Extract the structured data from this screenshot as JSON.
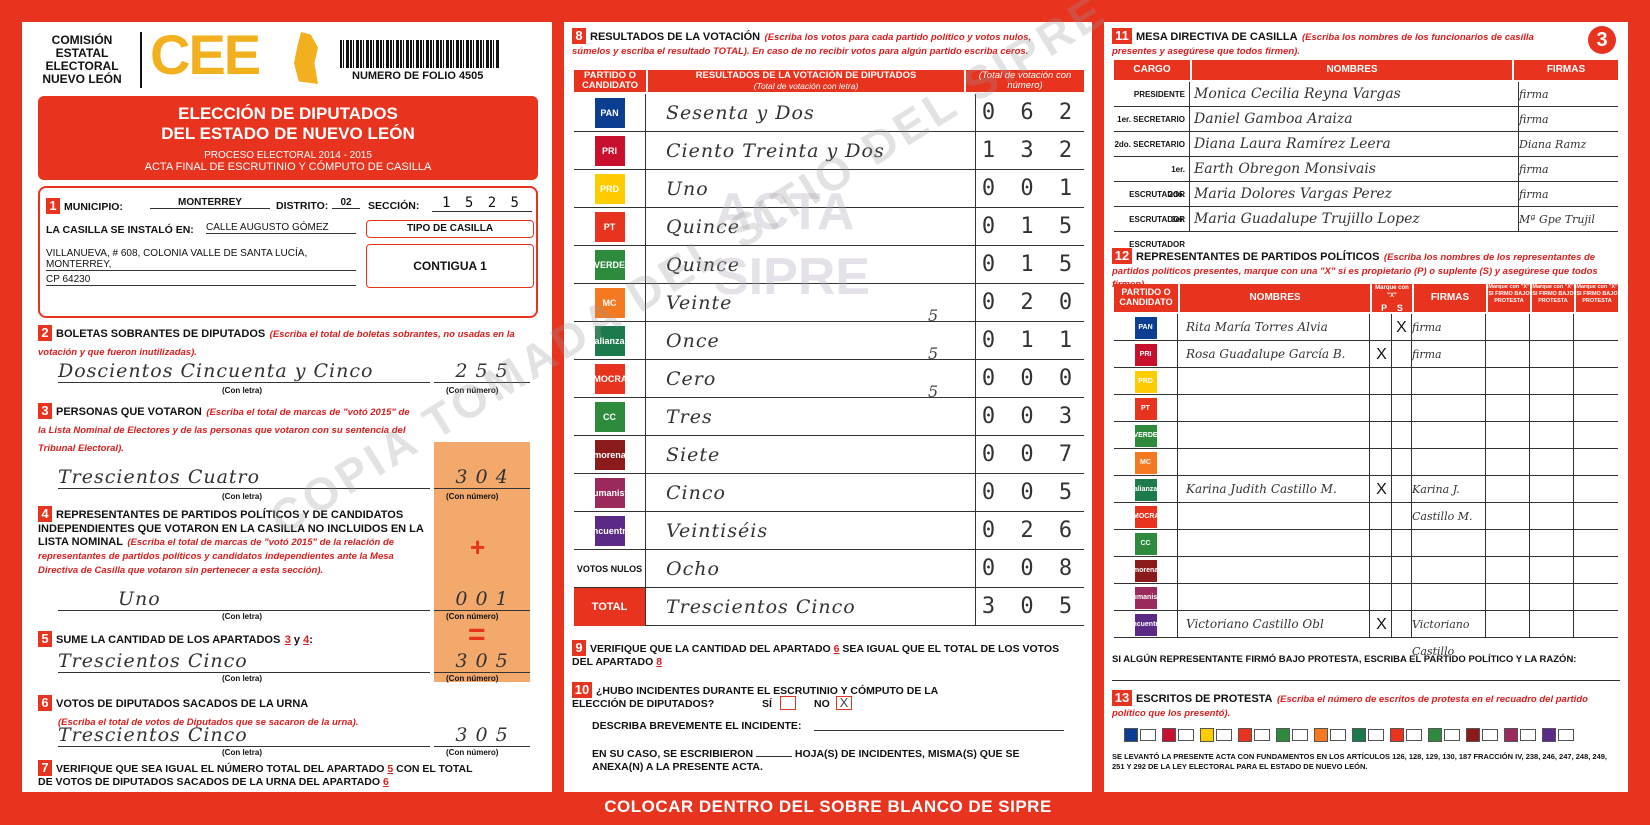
{
  "header": {
    "org_name_lines": [
      "COMISIÓN",
      "ESTATAL",
      "ELECTORAL",
      "NUEVO LEÓN"
    ],
    "logo_text": "CEE",
    "folio": "NUMERO DE FOLIO 4505",
    "page_number": "3"
  },
  "banner": {
    "title_line1": "ELECCIÓN DE DIPUTADOS",
    "title_line2": "DEL ESTADO DE NUEVO LEÓN",
    "process": "PROCESO ELECTORAL 2014 - 2015",
    "act": "ACTA FINAL DE ESCRUTINIO Y CÓMPUTO DE CASILLA"
  },
  "section1": {
    "num": "1",
    "municipio_label": "MUNICIPIO:",
    "municipio_value": "MONTERREY",
    "distrito_label": "DISTRITO:",
    "distrito_value": "02",
    "seccion_label": "SECCIÓN:",
    "seccion_value": "1 5 2 5",
    "installed_label": "LA CASILLA SE INSTALÓ EN:",
    "address_line1": "CALLE AUGUSTO GÓMEZ",
    "address_line2": "VILLANUEVA, # 608, COLONIA VALLE DE SANTA LUCÍA, MONTERREY,",
    "address_line3": "CP 64230",
    "tipo_label": "TIPO DE CASILLA",
    "tipo_value": "CONTIGUA 1"
  },
  "section2": {
    "num": "2",
    "title": "BOLETAS SOBRANTES DE DIPUTADOS",
    "note": "(Escriba el total de boletas sobrantes, no usadas en la votación y que fueron inutilizadas).",
    "letter": "Doscientos Cincuenta y Cinco",
    "number": "2 5 5",
    "letter_caption": "(Con letra)",
    "number_caption": "(Con número)"
  },
  "section3": {
    "num": "3",
    "title": "PERSONAS QUE VOTARON",
    "note": "(Escriba el total de marcas de \"votó 2015\" de la Lista Nominal de Electores y de las personas que votaron con su sentencia del Tribunal Electoral).",
    "letter": "Trescientos Cuatro",
    "number": "3 0 4",
    "letter_caption": "(Con letra)",
    "number_caption": "(Con número)"
  },
  "section4": {
    "num": "4",
    "title": "REPRESENTANTES DE PARTIDOS POLÍTICOS Y DE CANDIDATOS INDEPENDIENTES QUE VOTARON EN LA CASILLA NO INCLUIDOS EN LA LISTA NOMINAL",
    "note": "(Escriba el total de marcas de \"votó 2015\" de la relación de representantes de partidos políticos y candidatos independientes ante la Mesa Directiva de Casilla que votaron sin pertenecer a esta sección).",
    "letter": "Uno",
    "number": "0 0 1",
    "plus": "+",
    "letter_caption": "(Con letra)",
    "number_caption": "(Con número)"
  },
  "section5": {
    "num": "5",
    "title": "SUME LA CANTIDAD DE LOS APARTADOS",
    "ref_a": "3",
    "ref_b": "4",
    "letter": "Trescientos Cinco",
    "number": "3 0 5",
    "equals": "=",
    "letter_caption": "(Con letra)",
    "number_caption": "(Con número)"
  },
  "section6": {
    "num": "6",
    "title": "VOTOS DE DIPUTADOS SACADOS DE LA URNA",
    "note": "(Escriba el total de votos de Diputados que se sacaron de la urna).",
    "letter": "Trescientos Cinco",
    "number": "3 0 5",
    "letter_caption": "(Con letra)",
    "number_caption": "(Con número)"
  },
  "section7": {
    "num": "7",
    "text_a": "VERIFIQUE QUE SEA IGUAL EL NÚMERO TOTAL DEL APARTADO",
    "ref_a": "5",
    "text_b": "CON EL TOTAL DE VOTOS DE DIPUTADOS SACADOS DE LA URNA DEL APARTADO",
    "ref_b": "6"
  },
  "section8": {
    "num": "8",
    "title": "RESULTADOS DE LA VOTACIÓN",
    "note": "(Escriba los votos para cada partido político y votos nulos, súmelos y escriba el resultado TOTAL). En caso de no recibir votos para algún partido escriba ceros.",
    "col_party": "PARTIDO O CANDIDATO",
    "col_results": "RESULTADOS DE LA VOTACIÓN DE DIPUTADOS",
    "col_results_sub": "(Total de votación con letra)",
    "col_number": "(Total de votación con número)",
    "rows": [
      {
        "party": "PAN",
        "letter": "Sesenta y Dos",
        "number": "0 6 2",
        "color": "#0b3d91"
      },
      {
        "party": "PRI",
        "letter": "Ciento Treinta y Dos",
        "number": "1 3 2",
        "color": "#c8102e"
      },
      {
        "party": "PRD",
        "letter": "Uno",
        "number": "0 0 1",
        "color": "#ffcc00"
      },
      {
        "party": "PT",
        "letter": "Quince",
        "number": "0 1 5",
        "color": "#e8331f"
      },
      {
        "party": "VERDE",
        "letter": "Quince",
        "number": "0 1 5",
        "color": "#2e8b3d"
      },
      {
        "party": "MC",
        "letter": "Veinte",
        "number": "0 2 0",
        "color": "#f47920"
      },
      {
        "party": "alianza",
        "letter": "Once",
        "number": "0 1 1",
        "color": "#1d7a4c"
      },
      {
        "party": "DEMOCRATA",
        "letter": "Cero",
        "number": "0 0 0",
        "color": "#e8331f"
      },
      {
        "party": "CC",
        "letter": "Tres",
        "number": "0 0 3",
        "color": "#2e8b3d"
      },
      {
        "party": "morena",
        "letter": "Siete",
        "number": "0 0 7",
        "color": "#8b1a1a"
      },
      {
        "party": "Humanista",
        "letter": "Cinco",
        "number": "0 0 5",
        "color": "#9b2a5c"
      },
      {
        "party": "encuentro",
        "letter": "Veintiséis",
        "number": "0 2 6",
        "color": "#5b2a86"
      }
    ],
    "nulos_label": "VOTOS NULOS",
    "nulos_letter": "Ocho",
    "nulos_number": "0 0 8",
    "total_label": "TOTAL",
    "total_letter": "Trescientos Cinco",
    "total_number": "3 0 5",
    "margin_marks": [
      "5",
      "5",
      "5"
    ]
  },
  "section9": {
    "num": "9",
    "text_a": "VERIFIQUE QUE LA CANTIDAD DEL APARTADO",
    "ref_a": "6",
    "text_b": "SEA IGUAL QUE EL TOTAL DE LOS VOTOS DEL APARTADO",
    "ref_b": "8"
  },
  "section10": {
    "num": "10",
    "title": "¿HUBO INCIDENTES DURANTE EL ESCRUTINIO Y CÓMPUTO DE LA ELECCIÓN DE DIPUTADOS?",
    "si": "SÍ",
    "no": "NO",
    "no_mark": "X",
    "describe": "DESCRIBA BREVEMENTE EL INCIDENTE:",
    "anexo_a": "EN SU CASO, SE ESCRIBIERON",
    "anexo_b": "HOJA(S) DE INCIDENTES, MISMA(S) QUE SE ANEXA(N) A LA PRESENTE ACTA."
  },
  "footer": "COLOCAR DENTRO DEL SOBRE BLANCO DE SIPRE",
  "section11": {
    "num": "11",
    "title": "MESA DIRECTIVA DE CASILLA",
    "note": "(Escriba los nombres de los funcionarios de casilla presentes y asegúrese que todos firmen).",
    "col_cargo": "CARGO",
    "col_names": "NOMBRES",
    "col_firmas": "FIRMAS",
    "rows": [
      {
        "cargo": "PRESIDENTE",
        "name": "Monica Cecilia Reyna Vargas",
        "firma": "firma"
      },
      {
        "cargo": "1er. SECRETARIO",
        "name": "Daniel Gamboa Araiza",
        "firma": "firma"
      },
      {
        "cargo": "2do. SECRETARIO",
        "name": "Diana Laura Ramírez Leera",
        "firma": "Diana Ramz"
      },
      {
        "cargo": "1er. ESCRUTADOR",
        "name": "Earth Obregon Monsivais",
        "firma": "firma"
      },
      {
        "cargo": "2do. ESCRUTADOR",
        "name": "Maria Dolores Vargas Perez",
        "firma": "firma"
      },
      {
        "cargo": "3er. ESCRUTADOR",
        "name": "Maria Guadalupe Trujillo Lopez",
        "firma": "Mª Gpe Trujil"
      }
    ]
  },
  "section12": {
    "num": "12",
    "title": "REPRESENTANTES DE PARTIDOS POLÍTICOS",
    "note": "(Escriba los nombres de los representantes de partidos políticos presentes, marque con una \"X\" si es propietario (P) o suplente (S) y asegúrese que todos firmen).",
    "col_party": "PARTIDO O CANDIDATO",
    "col_names": "NOMBRES",
    "col_mark": "Marque con \"X\"",
    "col_p": "P",
    "col_s": "S",
    "col_firmas": "FIRMAS",
    "col_x1": "Marque con \"X\" SI FIRMO BAJO PROTESTA",
    "col_x2": "Marque con \"X\" SI FIRMO BAJO PROTESTA",
    "col_x3": "Marque con \"X\" SI FIRMO BAJO PROTESTA",
    "rows": [
      {
        "party": "PAN",
        "color": "#0b3d91",
        "name": "Rita María Torres Alvia",
        "p": "",
        "s": "X",
        "firma": "firma"
      },
      {
        "party": "PRI",
        "color": "#c8102e",
        "name": "Rosa Guadalupe García B.",
        "p": "X",
        "s": "",
        "firma": "firma"
      },
      {
        "party": "PRD",
        "color": "#ffcc00",
        "name": "",
        "p": "",
        "s": "",
        "firma": ""
      },
      {
        "party": "PT",
        "color": "#e8331f",
        "name": "",
        "p": "",
        "s": "",
        "firma": ""
      },
      {
        "party": "VERDE",
        "color": "#2e8b3d",
        "name": "",
        "p": "",
        "s": "",
        "firma": ""
      },
      {
        "party": "MC",
        "color": "#f47920",
        "name": "",
        "p": "",
        "s": "",
        "firma": ""
      },
      {
        "party": "alianza",
        "color": "#1d7a4c",
        "name": "Karina Judith Castillo M.",
        "p": "X",
        "s": "",
        "firma": "Karina J. Castillo M."
      },
      {
        "party": "DEMOCRATA",
        "color": "#e8331f",
        "name": "",
        "p": "",
        "s": "",
        "firma": ""
      },
      {
        "party": "CC",
        "color": "#2e8b3d",
        "name": "",
        "p": "",
        "s": "",
        "firma": ""
      },
      {
        "party": "morena",
        "color": "#8b1a1a",
        "name": "",
        "p": "",
        "s": "",
        "firma": ""
      },
      {
        "party": "Humanista",
        "color": "#9b2a5c",
        "name": "",
        "p": "",
        "s": "",
        "firma": ""
      },
      {
        "party": "encuentro",
        "color": "#5b2a86",
        "name": "Victoriano Castillo Obl",
        "p": "X",
        "s": "",
        "firma": "Victoriano Castillo"
      }
    ],
    "protest_note": "SI ALGÚN REPRESENTANTE FIRMÓ BAJO PROTESTA, ESCRIBA EL PARTIDO POLÍTICO Y LA RAZÓN:"
  },
  "section13": {
    "num": "13",
    "title": "ESCRITOS DE PROTESTA",
    "note": "(Escriba el número de escritos de protesta en el recuadro del partido político que los presentó).",
    "legal": "SE LEVANTÓ LA PRESENTE ACTA CON FUNDAMENTOS EN LOS ARTÍCULOS 126, 128, 129, 130, 187 FRACCIÓN IV, 238, 246, 247, 248, 249, 251 Y 292 DE LA LEY ELECTORAL PARA EL ESTADO DE NUEVO LEÓN.",
    "chips": [
      "#0b3d91",
      "#c8102e",
      "#ffcc00",
      "#e8331f",
      "#2e8b3d",
      "#f47920",
      "#1d7a4c",
      "#e8331f",
      "#2e8b3d",
      "#8b1a1a",
      "#9b2a5c",
      "#5b2a86"
    ]
  },
  "watermarks": {
    "acta": "ACTA",
    "sipre": "SIPRE",
    "copia": "COPIA TOMADA DEL SITIO DEL SIPRE"
  }
}
